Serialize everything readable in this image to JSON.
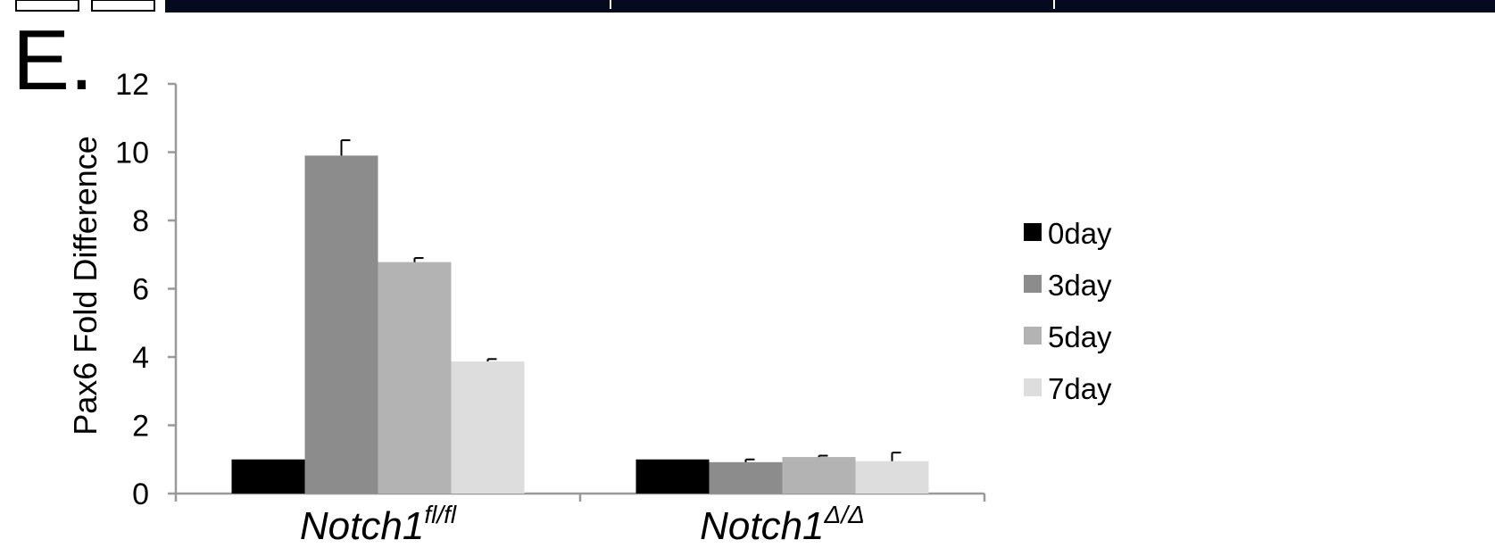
{
  "panel_label": "E.",
  "chart_data": {
    "type": "bar",
    "title": "",
    "xlabel": "",
    "ylabel": "Pax6 Fold Difference",
    "ylim": [
      0,
      12
    ],
    "yticks": [
      0,
      2,
      4,
      6,
      8,
      10,
      12
    ],
    "grid": false,
    "legend_position": "right",
    "categories": [
      {
        "base": "Notch1",
        "superscript": "fl/fl"
      },
      {
        "base": "Notch1",
        "superscript": "Δ/Δ"
      }
    ],
    "series": [
      {
        "name": "0day",
        "color": "#000000",
        "values": [
          1.0,
          1.0
        ],
        "errors": [
          0.0,
          0.0
        ]
      },
      {
        "name": "3day",
        "color": "#8c8c8c",
        "values": [
          9.9,
          0.92
        ],
        "errors": [
          0.45,
          0.08
        ]
      },
      {
        "name": "5day",
        "color": "#b3b3b3",
        "values": [
          6.78,
          1.07
        ],
        "errors": [
          0.12,
          0.04
        ]
      },
      {
        "name": "7day",
        "color": "#dddddd",
        "values": [
          3.87,
          0.95
        ],
        "errors": [
          0.07,
          0.25
        ]
      }
    ]
  }
}
